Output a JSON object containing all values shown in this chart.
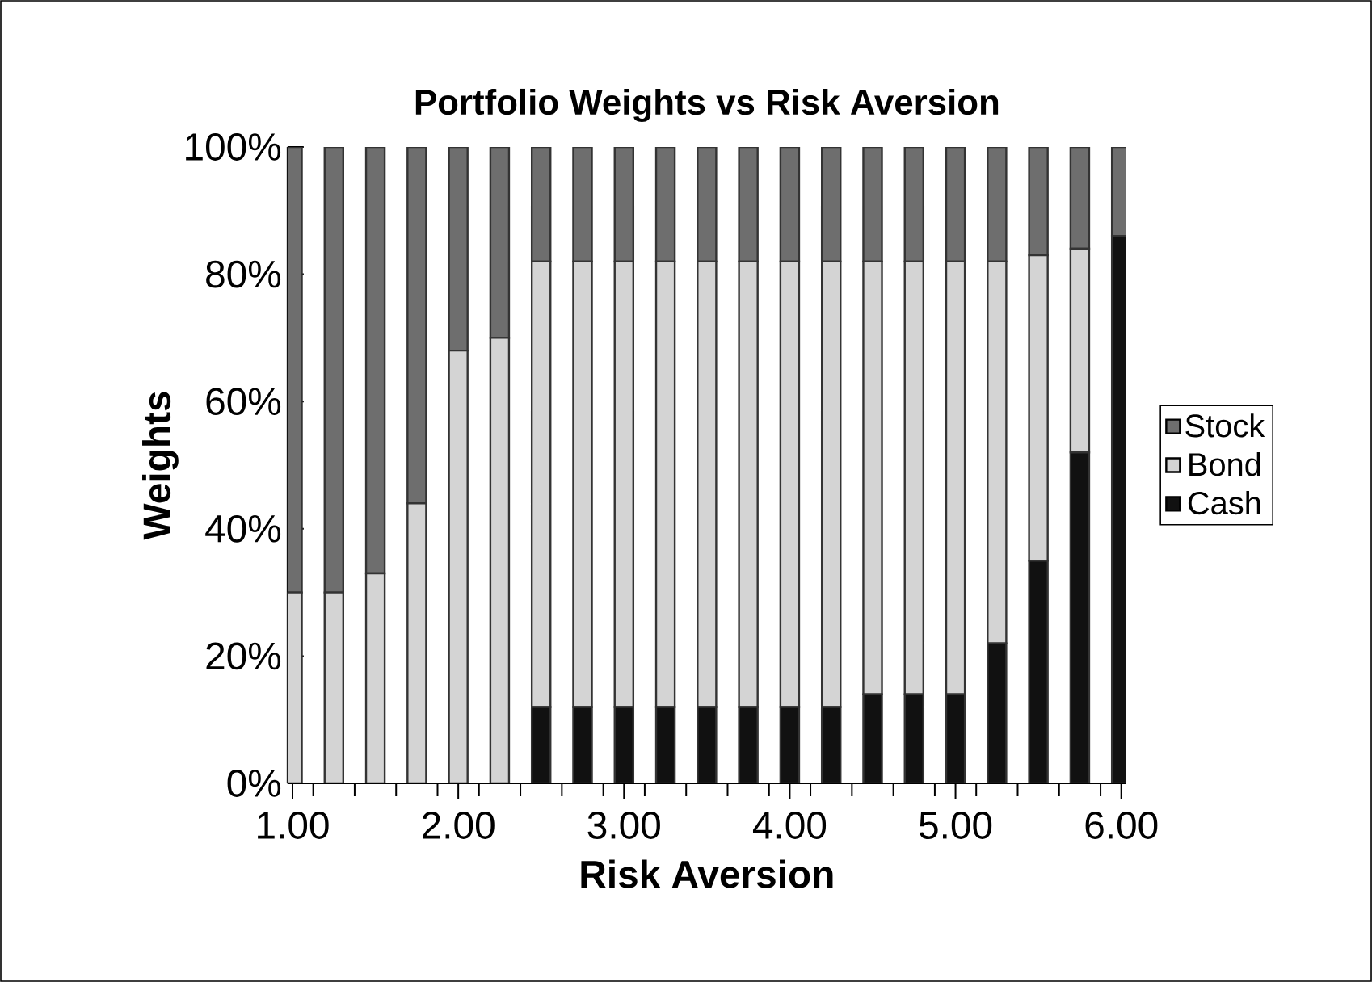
{
  "chart_data": {
    "type": "bar",
    "title": "Portfolio Weights vs Risk Aversion",
    "xlabel": "Risk Aversion",
    "ylabel": "Weights",
    "stacked": true,
    "legend": "right",
    "categories": [
      "1.00",
      null,
      null,
      null,
      "2.00",
      null,
      null,
      null,
      "3.00",
      null,
      null,
      null,
      "4.00",
      null,
      null,
      null,
      "5.00",
      null,
      null,
      null,
      "6.00"
    ],
    "series": [
      {
        "name": "Cash",
        "color": "#111111",
        "values": [
          0,
          0,
          0,
          0,
          0,
          0,
          12,
          12,
          12,
          12,
          12,
          12,
          12,
          12,
          14,
          14,
          14,
          22,
          35,
          52,
          86
        ]
      },
      {
        "name": "Bond",
        "color": "#d4d4d4",
        "values": [
          30,
          30,
          33,
          44,
          68,
          70,
          70,
          70,
          70,
          70,
          70,
          70,
          70,
          70,
          68,
          68,
          68,
          60,
          48,
          32,
          0
        ]
      },
      {
        "name": "Stock",
        "color": "#6e6e6e",
        "values": [
          70,
          70,
          67,
          56,
          32,
          30,
          18,
          18,
          18,
          18,
          18,
          18,
          18,
          18,
          18,
          18,
          18,
          18,
          17,
          16,
          14
        ]
      }
    ],
    "ylim": [
      0,
      100
    ],
    "yticks": [
      {
        "value": 0,
        "label": "0%"
      },
      {
        "value": 20,
        "label": "20%"
      },
      {
        "value": 40,
        "label": "40%"
      },
      {
        "value": 60,
        "label": "60%"
      },
      {
        "value": 80,
        "label": "80%"
      },
      {
        "value": 100,
        "label": "100%"
      }
    ]
  }
}
